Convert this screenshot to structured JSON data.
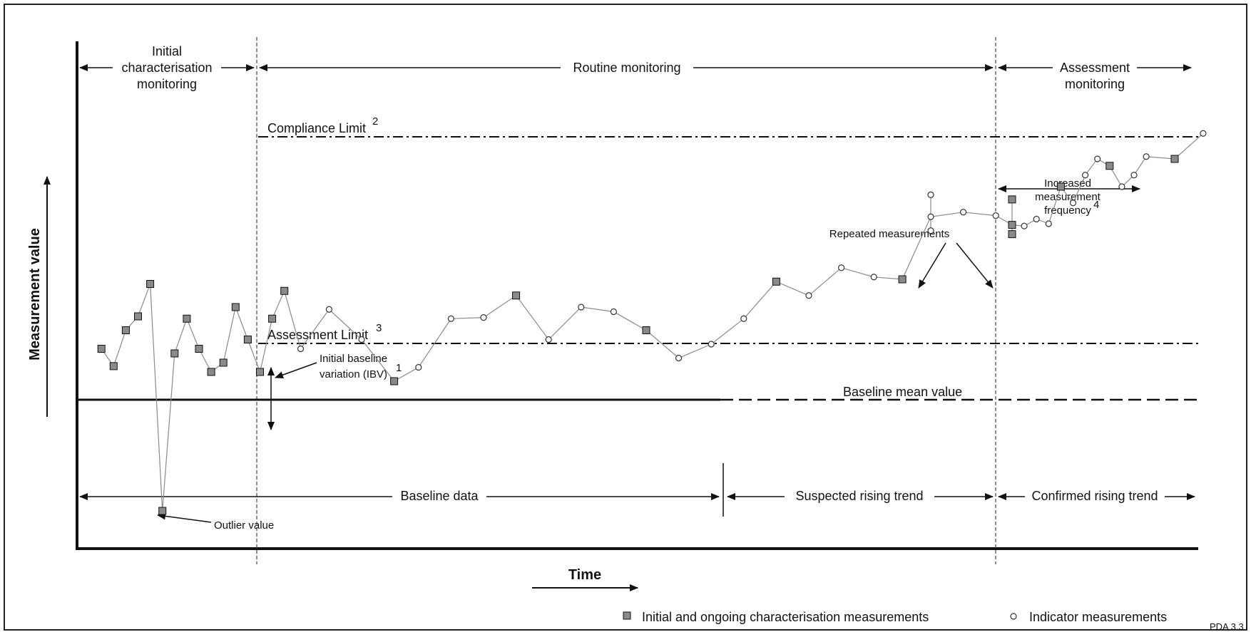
{
  "phases": {
    "initial_line1": "Initial",
    "initial_line2": "characterisation",
    "initial_line3": "monitoring",
    "routine": "Routine monitoring",
    "assessment_line1": "Assessment",
    "assessment_line2": "monitoring"
  },
  "limits": {
    "compliance": "Compliance Limit",
    "compliance_note": "2",
    "assessment": "Assessment Limit",
    "assessment_note": "3",
    "baseline_mean": "Baseline mean value"
  },
  "annotations": {
    "ibv_line1": "Initial baseline",
    "ibv_line2": "variation (IBV)",
    "ibv_note": "1",
    "outlier": "Outlier value",
    "repeated": "Repeated measurements",
    "freq_line1": "Increased",
    "freq_line2": "measurement",
    "freq_line3": "frequency",
    "freq_note": "4"
  },
  "bottom_ranges": {
    "baseline": "Baseline data",
    "suspected": "Suspected rising trend",
    "confirmed": "Confirmed rising trend"
  },
  "axes": {
    "y": "Measurement value",
    "x": "Time"
  },
  "legend": {
    "characterisation": "Initial and ongoing characterisation measurements",
    "indicator": "Indicator measurements"
  },
  "code": "PDA 3.3",
  "series": {
    "main": [
      [
        "s",
        0.3,
        2.2
      ],
      [
        "s",
        0.45,
        1.45
      ],
      [
        "s",
        0.6,
        3.0
      ],
      [
        "s",
        0.75,
        3.6
      ],
      [
        "s",
        0.9,
        5.0
      ],
      [
        "s",
        1.05,
        -4.8
      ],
      [
        "s",
        1.2,
        2.0
      ],
      [
        "s",
        1.35,
        3.5
      ],
      [
        "s",
        1.5,
        2.2
      ],
      [
        "s",
        1.65,
        1.2
      ],
      [
        "s",
        1.8,
        1.6
      ],
      [
        "s",
        1.95,
        4.0
      ],
      [
        "s",
        2.1,
        2.6
      ],
      [
        "s",
        2.25,
        1.2
      ],
      [
        "s",
        2.4,
        3.5
      ],
      [
        "s",
        2.55,
        4.7
      ],
      [
        "c",
        2.75,
        2.2
      ],
      [
        "c",
        3.1,
        3.9
      ],
      [
        "c",
        3.5,
        2.6
      ],
      [
        "s",
        3.9,
        0.8
      ],
      [
        "c",
        4.2,
        1.4
      ],
      [
        "c",
        4.6,
        3.5
      ],
      [
        "c",
        5.0,
        3.55
      ],
      [
        "s",
        5.4,
        4.5
      ],
      [
        "c",
        5.8,
        2.6
      ],
      [
        "c",
        6.2,
        4.0
      ],
      [
        "c",
        6.6,
        3.8
      ],
      [
        "s",
        7.0,
        3.0
      ],
      [
        "c",
        7.4,
        1.8
      ],
      [
        "c",
        7.8,
        2.4
      ],
      [
        "c",
        8.2,
        3.5
      ],
      [
        "s",
        8.6,
        5.1
      ],
      [
        "c",
        9.0,
        4.5
      ],
      [
        "c",
        9.4,
        5.7
      ],
      [
        "c",
        9.8,
        5.3
      ],
      [
        "s",
        10.15,
        5.2
      ],
      [
        "c",
        10.5,
        7.9
      ],
      [
        "c",
        10.9,
        8.1
      ],
      [
        "c",
        11.3,
        7.95
      ],
      [
        "s",
        11.5,
        7.55
      ],
      [
        "c",
        11.65,
        7.5
      ],
      [
        "c",
        11.8,
        7.8
      ],
      [
        "c",
        11.95,
        7.6
      ],
      [
        "s",
        12.1,
        9.2
      ],
      [
        "c",
        12.25,
        8.5
      ],
      [
        "c",
        12.4,
        9.7
      ],
      [
        "c",
        12.55,
        10.4
      ],
      [
        "s",
        12.7,
        10.1
      ],
      [
        "c",
        12.85,
        9.2
      ],
      [
        "c",
        13.0,
        9.7
      ],
      [
        "c",
        13.15,
        10.5
      ],
      [
        "s",
        13.5,
        10.4
      ],
      [
        "c",
        13.85,
        11.5
      ]
    ],
    "repeats": [
      [
        "c",
        10.5,
        8.85
      ],
      [
        "c",
        10.5,
        7.3
      ],
      [
        "s",
        11.5,
        8.65
      ],
      [
        "s",
        11.5,
        7.15
      ]
    ]
  }
}
